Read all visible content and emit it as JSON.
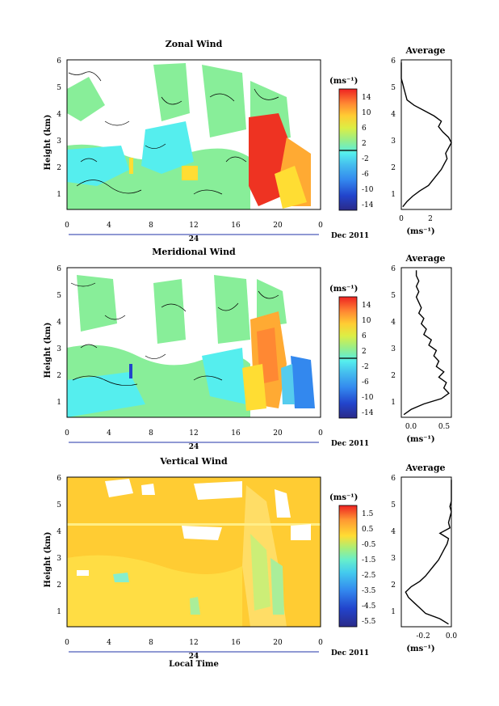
{
  "panels": [
    {
      "key": "zonal",
      "title": "Zonal Wind",
      "unit": "(ms⁻¹)",
      "ylabel": "Height (km)",
      "colorbar_ticks": [
        "14",
        "10",
        "6",
        "2",
        "-2",
        "-6",
        "-10",
        "-14"
      ],
      "avg_title": "Average",
      "avg_xlabel": "(ms⁻¹)",
      "avg_xticks": [
        "0",
        "2"
      ],
      "date_label": "Dec 2011",
      "day_label": "24"
    },
    {
      "key": "meridional",
      "title": "Meridional Wind",
      "unit": "(ms⁻¹)",
      "ylabel": "Height (km)",
      "colorbar_ticks": [
        "14",
        "10",
        "6",
        "2",
        "-2",
        "-6",
        "-10",
        "-14"
      ],
      "avg_title": "Average",
      "avg_xlabel": "(ms⁻¹)",
      "avg_xticks": [
        "0.0",
        "0.5"
      ],
      "date_label": "Dec 2011",
      "day_label": "24"
    },
    {
      "key": "vertical",
      "title": "Vertical Wind",
      "unit": "(ms⁻¹)",
      "ylabel": "Height (km)",
      "colorbar_ticks": [
        "1.5",
        "0.5",
        "-0.5",
        "-1.5",
        "-2.5",
        "-3.5",
        "-4.5",
        "-5.5"
      ],
      "avg_title": "Average",
      "avg_xlabel": "(ms⁻¹)",
      "avg_xticks": [
        "-0.2",
        "0.0"
      ],
      "date_label": "Dec 2011",
      "day_label": "24",
      "xlabel": "Local Time"
    }
  ],
  "chart_data": [
    {
      "type": "heatmap",
      "title": "Zonal Wind",
      "xlabel": "",
      "ylabel": "Height (km)",
      "x_ticks": [
        "0",
        "4",
        "8",
        "12",
        "16",
        "20",
        "0"
      ],
      "y_ticks": [
        "1",
        "2",
        "3",
        "4",
        "5",
        "6"
      ],
      "xlim": [
        0,
        24
      ],
      "ylim": [
        0.4,
        6
      ],
      "colorbar": {
        "label": "(ms⁻¹)",
        "range": [
          -16,
          16
        ],
        "ticks": [
          14,
          10,
          6,
          2,
          -2,
          -6,
          -10,
          -14
        ]
      },
      "description_values": {
        "background": 0,
        "hot_region": {
          "x": [
            16.2,
            22.5
          ],
          "y": [
            0.4,
            3.8
          ],
          "value": 14
        }
      },
      "colors": {
        "white": "#ffffff",
        "cyan": "#55eeee",
        "green": "#88ee99",
        "red": "#ee3322",
        "orange": "#ffaa33",
        "yellow": "#ffdd33"
      }
    },
    {
      "type": "line",
      "title": "Average",
      "xlabel": "(ms⁻¹)",
      "ylabel": "",
      "xlim": [
        0,
        3.5
      ],
      "ylim": [
        0.4,
        6
      ],
      "x_ticks": [
        0,
        2
      ],
      "y_ticks": [
        1,
        2,
        3,
        4,
        5,
        6
      ],
      "series": [
        {
          "name": "",
          "x": [
            0.1,
            0.4,
            0.8,
            1.3,
            1.9,
            2.2,
            2.5,
            2.8,
            3.0,
            3.2,
            3.1,
            3.3,
            3.5,
            3.3,
            2.9,
            2.6,
            2.8,
            2.3,
            1.6,
            0.9,
            0.4,
            0.3,
            0.2,
            0.1,
            0.0,
            0.0,
            0.0,
            0.0
          ],
          "y": [
            0.5,
            0.7,
            0.9,
            1.1,
            1.3,
            1.5,
            1.7,
            1.9,
            2.1,
            2.3,
            2.5,
            2.7,
            2.9,
            3.1,
            3.3,
            3.5,
            3.7,
            3.9,
            4.1,
            4.3,
            4.5,
            4.7,
            4.9,
            5.1,
            5.3,
            5.5,
            5.7,
            5.9
          ]
        }
      ]
    },
    {
      "type": "heatmap",
      "title": "Meridional Wind",
      "xlabel": "",
      "ylabel": "Height (km)",
      "x_ticks": [
        "0",
        "4",
        "8",
        "12",
        "16",
        "20",
        "0"
      ],
      "y_ticks": [
        "1",
        "2",
        "3",
        "4",
        "5",
        "6"
      ],
      "xlim": [
        0,
        24
      ],
      "ylim": [
        0.4,
        6
      ],
      "colorbar": {
        "label": "(ms⁻¹)",
        "range": [
          -16,
          16
        ],
        "ticks": [
          14,
          10,
          6,
          2,
          -2,
          -6,
          -10,
          -14
        ]
      }
    },
    {
      "type": "line",
      "title": "Average",
      "xlabel": "(ms⁻¹)",
      "ylabel": "",
      "xlim": [
        -0.4,
        0.6
      ],
      "ylim": [
        0.4,
        6
      ],
      "x_ticks": [
        0.0,
        0.5
      ],
      "y_ticks": [
        1,
        2,
        3,
        4,
        5,
        6
      ],
      "series": [
        {
          "name": "",
          "x": [
            -0.35,
            -0.2,
            0.05,
            0.4,
            0.55,
            0.45,
            0.5,
            0.35,
            0.45,
            0.3,
            0.35,
            0.25,
            0.3,
            0.15,
            0.2,
            0.05,
            0.1,
            0.0,
            0.05,
            -0.05,
            0.0,
            -0.05,
            -0.1,
            -0.05,
            -0.1,
            -0.05,
            -0.1,
            -0.1
          ],
          "y": [
            0.5,
            0.7,
            0.9,
            1.1,
            1.3,
            1.5,
            1.7,
            1.9,
            2.1,
            2.3,
            2.5,
            2.7,
            2.9,
            3.1,
            3.3,
            3.5,
            3.7,
            3.9,
            4.1,
            4.3,
            4.5,
            4.7,
            4.9,
            5.1,
            5.3,
            5.5,
            5.7,
            5.9
          ]
        }
      ]
    },
    {
      "type": "heatmap",
      "title": "Vertical Wind",
      "xlabel": "Local Time",
      "ylabel": "Height (km)",
      "x_ticks": [
        "0",
        "4",
        "8",
        "12",
        "16",
        "20",
        "0"
      ],
      "y_ticks": [
        "1",
        "2",
        "3",
        "4",
        "5",
        "6"
      ],
      "xlim": [
        0,
        24
      ],
      "ylim": [
        0.4,
        6
      ],
      "colorbar": {
        "label": "(ms⁻¹)",
        "range": [
          -6,
          2
        ],
        "ticks": [
          1.5,
          0.5,
          -0.5,
          -1.5,
          -2.5,
          -3.5,
          -4.5,
          -5.5
        ]
      }
    },
    {
      "type": "line",
      "title": "Average",
      "xlabel": "(ms⁻¹)",
      "ylabel": "",
      "xlim": [
        -0.35,
        0.0
      ],
      "ylim": [
        0.4,
        6
      ],
      "x_ticks": [
        -0.2,
        0.0
      ],
      "y_ticks": [
        1,
        2,
        3,
        4,
        5,
        6
      ],
      "series": [
        {
          "name": "",
          "x": [
            -0.02,
            -0.08,
            -0.18,
            -0.22,
            -0.26,
            -0.3,
            -0.32,
            -0.28,
            -0.22,
            -0.18,
            -0.15,
            -0.12,
            -0.09,
            -0.07,
            -0.05,
            -0.03,
            -0.02,
            -0.08,
            -0.01,
            -0.02,
            -0.01,
            0.0,
            -0.01,
            0.0,
            0.0,
            0.0,
            0.0,
            0.0
          ],
          "y": [
            0.5,
            0.7,
            0.9,
            1.1,
            1.3,
            1.5,
            1.7,
            1.9,
            2.1,
            2.3,
            2.5,
            2.7,
            2.9,
            3.1,
            3.3,
            3.5,
            3.7,
            3.9,
            4.1,
            4.3,
            4.5,
            4.7,
            4.9,
            5.1,
            5.3,
            5.5,
            5.7,
            5.9
          ]
        }
      ]
    }
  ]
}
